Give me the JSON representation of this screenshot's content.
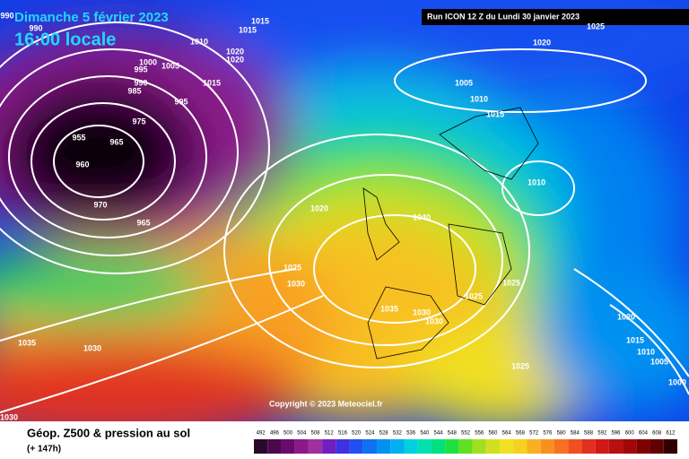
{
  "header": {
    "date": "Dimanche 5 février 2023",
    "time": "16:00 locale",
    "run": "Run ICON 12 Z du Lundi 30 janvier 2023"
  },
  "copyright": "Copyright © 2023 Meteociel.fr",
  "footer": {
    "title": "Géop. Z500 & pression au sol",
    "lead": "(+ 147h)"
  },
  "legend": {
    "labels": [
      492,
      496,
      500,
      504,
      508,
      512,
      516,
      520,
      524,
      528,
      532,
      536,
      540,
      544,
      548,
      552,
      556,
      560,
      564,
      568,
      572,
      576,
      580,
      584,
      588,
      592,
      596,
      600,
      604,
      608,
      612
    ],
    "colors": [
      "#2a0a2a",
      "#4a0a4a",
      "#6a0a6a",
      "#8a1a8a",
      "#a030a0",
      "#7020c0",
      "#4030e0",
      "#2050f0",
      "#1070f0",
      "#0090f0",
      "#00b0f0",
      "#00d0e0",
      "#00e0b0",
      "#00e080",
      "#20e040",
      "#60e020",
      "#a0e020",
      "#d0e020",
      "#f0e020",
      "#f8d020",
      "#f8b020",
      "#f89020",
      "#f87020",
      "#f05020",
      "#e03020",
      "#d01818",
      "#b81010",
      "#a00808",
      "#800000",
      "#600000",
      "#300000"
    ]
  },
  "isobar_labels": [
    990,
    990,
    1015,
    1015,
    1010,
    1020,
    1020,
    1000,
    1005,
    995,
    990,
    985,
    1015,
    995,
    975,
    955,
    965,
    960,
    970,
    965,
    1020,
    1025,
    1005,
    1010,
    1015,
    1010,
    1020,
    1040,
    1025,
    1030,
    1035,
    1030,
    1030,
    1025,
    1025,
    1035,
    1030,
    1025,
    1020,
    1015,
    1010,
    1005,
    1000,
    1030
  ]
}
